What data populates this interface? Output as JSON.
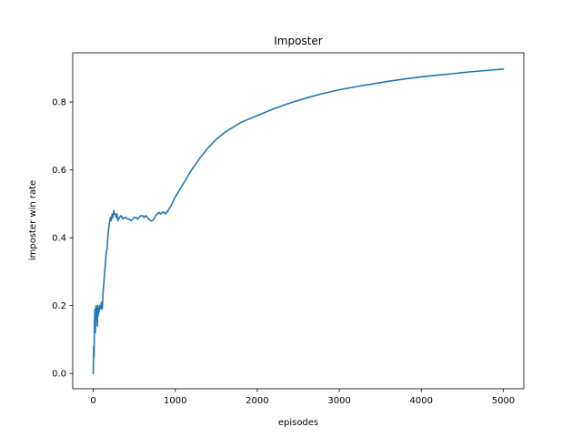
{
  "chart_data": {
    "type": "line",
    "title": "Imposter",
    "xlabel": "episodes",
    "ylabel": "imposter win rate",
    "xlim": [
      -250,
      5250
    ],
    "ylim": [
      -0.045,
      0.945
    ],
    "x_ticks": [
      0,
      1000,
      2000,
      3000,
      4000,
      5000
    ],
    "x_tick_labels": [
      "0",
      "1000",
      "2000",
      "3000",
      "4000",
      "5000"
    ],
    "y_ticks": [
      0.0,
      0.2,
      0.4,
      0.6,
      0.8
    ],
    "y_tick_labels": [
      "0.0",
      "0.2",
      "0.4",
      "0.6",
      "0.8"
    ],
    "grid": false,
    "legend": "none",
    "series": [
      {
        "color": "#1f77b4",
        "x": [
          0,
          5,
          10,
          15,
          20,
          25,
          30,
          35,
          40,
          45,
          50,
          55,
          60,
          65,
          70,
          80,
          90,
          100,
          110,
          120,
          130,
          140,
          150,
          160,
          170,
          180,
          190,
          200,
          210,
          220,
          230,
          240,
          250,
          260,
          270,
          280,
          290,
          300,
          320,
          340,
          360,
          380,
          400,
          420,
          440,
          460,
          480,
          500,
          520,
          540,
          560,
          580,
          600,
          620,
          640,
          660,
          680,
          700,
          720,
          740,
          760,
          780,
          800,
          820,
          840,
          860,
          880,
          900,
          950,
          1000,
          1100,
          1200,
          1300,
          1400,
          1500,
          1600,
          1700,
          1800,
          1900,
          2000,
          2200,
          2400,
          2600,
          2800,
          3000,
          3200,
          3400,
          3600,
          3800,
          4000,
          4200,
          4400,
          4600,
          4800,
          5000
        ],
        "y": [
          0.0,
          0.08,
          0.05,
          0.15,
          0.19,
          0.12,
          0.17,
          0.2,
          0.16,
          0.18,
          0.14,
          0.2,
          0.17,
          0.19,
          0.18,
          0.2,
          0.19,
          0.21,
          0.19,
          0.24,
          0.27,
          0.3,
          0.33,
          0.36,
          0.37,
          0.41,
          0.43,
          0.45,
          0.46,
          0.45,
          0.47,
          0.46,
          0.48,
          0.47,
          0.47,
          0.46,
          0.47,
          0.45,
          0.46,
          0.465,
          0.455,
          0.46,
          0.46,
          0.455,
          0.455,
          0.45,
          0.455,
          0.46,
          0.46,
          0.455,
          0.46,
          0.465,
          0.465,
          0.46,
          0.465,
          0.46,
          0.455,
          0.45,
          0.45,
          0.455,
          0.465,
          0.47,
          0.475,
          0.47,
          0.475,
          0.475,
          0.47,
          0.475,
          0.495,
          0.52,
          0.56,
          0.6,
          0.635,
          0.665,
          0.69,
          0.71,
          0.725,
          0.74,
          0.75,
          0.76,
          0.78,
          0.797,
          0.812,
          0.825,
          0.836,
          0.845,
          0.853,
          0.861,
          0.868,
          0.874,
          0.879,
          0.884,
          0.889,
          0.893,
          0.897
        ]
      }
    ]
  }
}
